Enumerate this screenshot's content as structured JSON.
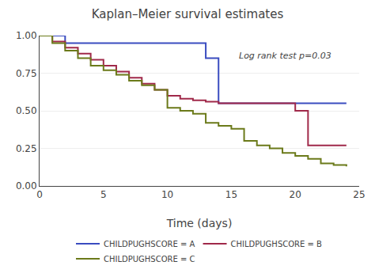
{
  "chart_data": {
    "type": "step",
    "title": "Kaplan–Meier survival estimates",
    "xlabel": "Time (days)",
    "xlim": [
      0,
      25
    ],
    "ylim": [
      0,
      1.0
    ],
    "xticks": [
      0,
      5,
      10,
      15,
      20,
      25
    ],
    "yticks": [
      {
        "value": 0,
        "label": "0.00"
      },
      0.25,
      {
        "value": 0.5,
        "label": "0.50"
      },
      0.75,
      {
        "value": 1.0,
        "label": "1.00"
      }
    ],
    "grid": "y",
    "legend": "bottom",
    "annotations": [
      {
        "text": "Log rank test p=0.03",
        "x": 15.5,
        "y": 0.82
      }
    ],
    "series": [
      {
        "name": "CHILDPUGHSCORE = A",
        "color": "#3a4cc0",
        "x": [
          0,
          1,
          2,
          13,
          13,
          14,
          14,
          20,
          21,
          24
        ],
        "values": [
          1.0,
          1.0,
          0.95,
          0.95,
          0.85,
          0.85,
          0.55,
          0.55,
          0.55,
          0.55
        ]
      },
      {
        "name": "CHILDPUGHSCORE = B",
        "color": "#a0294a",
        "x": [
          0,
          1,
          2,
          3,
          4,
          5,
          6,
          7,
          8,
          9,
          10,
          11,
          12,
          13,
          14,
          19,
          20,
          21,
          23,
          24
        ],
        "values": [
          1.0,
          0.96,
          0.92,
          0.88,
          0.84,
          0.8,
          0.76,
          0.72,
          0.68,
          0.64,
          0.6,
          0.58,
          0.57,
          0.56,
          0.55,
          0.55,
          0.5,
          0.27,
          0.27,
          0.27
        ]
      },
      {
        "name": "CHILDPUGHSCORE = C",
        "color": "#6b7a1a",
        "x": [
          0,
          1,
          2,
          3,
          4,
          5,
          6,
          7,
          8,
          9,
          10,
          11,
          12,
          13,
          14,
          15,
          16,
          17,
          18,
          19,
          20,
          21,
          22,
          23,
          24
        ],
        "values": [
          1.0,
          0.95,
          0.9,
          0.85,
          0.8,
          0.77,
          0.74,
          0.7,
          0.67,
          0.64,
          0.52,
          0.5,
          0.48,
          0.42,
          0.4,
          0.38,
          0.3,
          0.27,
          0.25,
          0.22,
          0.2,
          0.18,
          0.15,
          0.14,
          0.13
        ]
      }
    ]
  }
}
